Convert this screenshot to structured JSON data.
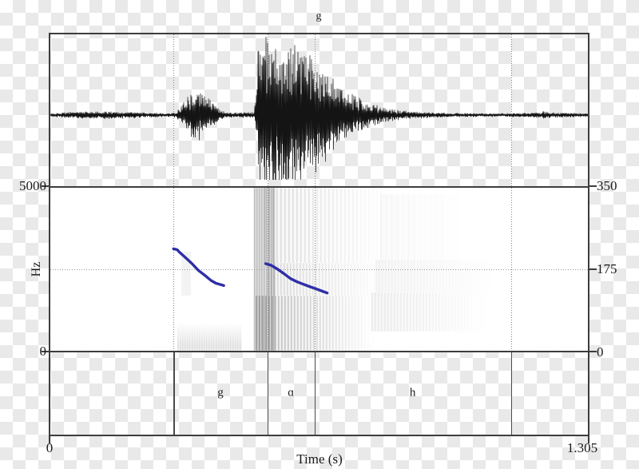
{
  "title": "g",
  "colors": {
    "frame": "#3d3d3d",
    "waveform_ink": "#141414",
    "pitch_line": "#2e2ea8",
    "dotted_guide": "#858585",
    "spectrogram_bg": "#ffffff",
    "spectrogram_ink": "#2d2d2d",
    "checker_gray": "#e9e9e9"
  },
  "axes": {
    "left": {
      "top_tick": "5000",
      "bottom_tick": "0",
      "unit": "Hz"
    },
    "right": {
      "top_tick": "350",
      "mid_tick": "175",
      "bottom_tick": "0"
    },
    "bottom": {
      "start_tick": "0",
      "end_tick": "1.305",
      "label": "Time (s)"
    }
  },
  "chart_data": [
    {
      "type": "line",
      "panel": "waveform",
      "title": "g",
      "x_range": [
        0,
        1.305
      ],
      "xlabel": "Time (s)",
      "description": "speech oscillogram; envelope = [time s, amplitude fraction of half-height]",
      "envelope": [
        [
          0,
          0.021
        ],
        [
          0.077,
          0.042
        ],
        [
          0.135,
          0.047
        ],
        [
          0.212,
          0.032
        ],
        [
          0.29,
          0.021
        ],
        [
          0.305,
          0.032
        ],
        [
          0.319,
          0.126
        ],
        [
          0.332,
          0.232
        ],
        [
          0.351,
          0.295
        ],
        [
          0.371,
          0.263
        ],
        [
          0.386,
          0.179
        ],
        [
          0.402,
          0.105
        ],
        [
          0.413,
          0.053
        ],
        [
          0.429,
          0.032
        ],
        [
          0.463,
          0.032
        ],
        [
          0.494,
          0.032
        ],
        [
          0.5,
          0.263
        ],
        [
          0.504,
          0.947
        ],
        [
          0.517,
          1.0
        ],
        [
          0.533,
          0.926
        ],
        [
          0.546,
          0.979
        ],
        [
          0.56,
          0.863
        ],
        [
          0.575,
          0.937
        ],
        [
          0.591,
          0.821
        ],
        [
          0.606,
          0.874
        ],
        [
          0.622,
          0.737
        ],
        [
          0.637,
          0.674
        ],
        [
          0.652,
          0.589
        ],
        [
          0.672,
          0.495
        ],
        [
          0.691,
          0.4
        ],
        [
          0.71,
          0.316
        ],
        [
          0.733,
          0.242
        ],
        [
          0.757,
          0.179
        ],
        [
          0.782,
          0.126
        ],
        [
          0.811,
          0.084
        ],
        [
          0.849,
          0.053
        ],
        [
          0.898,
          0.037
        ],
        [
          0.965,
          0.026
        ],
        [
          1.042,
          0.021
        ],
        [
          1.12,
          0.021
        ],
        [
          1.181,
          0.032
        ],
        [
          1.197,
          0.047
        ],
        [
          1.212,
          0.032
        ],
        [
          1.305,
          0.021
        ]
      ]
    },
    {
      "type": "heatmap",
      "panel": "spectrogram",
      "ylabel": "Hz",
      "ylim": [
        0,
        5000
      ],
      "yticks": [
        0,
        5000
      ],
      "description": "grayscale spectrogram energy regions; t in s, f in Hz, d = darkness 0-1",
      "texture_regions": [
        {
          "t": [
            0.309,
            0.465
          ],
          "f": [
            0,
            850
          ],
          "d": 0.2,
          "stripe": 3,
          "fade": "top"
        },
        {
          "t": [
            0.318,
            0.341
          ],
          "f": [
            1700,
            3050
          ],
          "d": 0.06,
          "stripe": 0,
          "fade": "none"
        },
        {
          "t": [
            0.494,
            0.546
          ],
          "f": [
            0,
            5000
          ],
          "d": 0.4,
          "stripe": 3,
          "fade": "none"
        },
        {
          "t": [
            0.498,
            0.79
          ],
          "f": [
            0,
            1700
          ],
          "d": 0.4,
          "stripe": 4,
          "fade": "right"
        },
        {
          "t": [
            0.527,
            0.81
          ],
          "f": [
            1700,
            2700
          ],
          "d": 0.22,
          "stripe": 4,
          "fade": "right"
        },
        {
          "t": [
            0.52,
            0.82
          ],
          "f": [
            2700,
            5000
          ],
          "d": 0.2,
          "stripe": 5,
          "fade": "right"
        },
        {
          "t": [
            0.79,
            1.08
          ],
          "f": [
            1800,
            2800
          ],
          "d": 0.09,
          "stripe": 4,
          "fade": "right"
        },
        {
          "t": [
            0.78,
            1.06
          ],
          "f": [
            600,
            1800
          ],
          "d": 0.12,
          "stripe": 4,
          "fade": "right"
        },
        {
          "t": [
            0.8,
            1.01
          ],
          "f": [
            2800,
            4800
          ],
          "d": 0.05,
          "stripe": 7,
          "fade": "right"
        }
      ]
    },
    {
      "type": "line",
      "panel": "pitch",
      "ylim": [
        0,
        350
      ],
      "yticks": [
        0,
        175,
        350
      ],
      "legend": "none",
      "description": "blue pitch contour over spectrogram; points = [time s, F0 Hz]",
      "series": [
        {
          "name": "pitch segment 1",
          "points": [
            [
              0.299,
              219
            ],
            [
              0.308,
              217
            ],
            [
              0.313,
              212
            ],
            [
              0.328,
              200
            ],
            [
              0.344,
              187
            ],
            [
              0.359,
              173
            ],
            [
              0.375,
              162
            ],
            [
              0.39,
              151
            ],
            [
              0.402,
              145
            ],
            [
              0.417,
              141
            ],
            [
              0.421,
              140
            ]
          ]
        },
        {
          "name": "pitch segment 2",
          "points": [
            [
              0.523,
              187
            ],
            [
              0.537,
              183
            ],
            [
              0.552,
              175
            ],
            [
              0.568,
              165
            ],
            [
              0.583,
              155
            ],
            [
              0.599,
              148
            ],
            [
              0.614,
              143
            ],
            [
              0.629,
              138
            ],
            [
              0.645,
              133
            ],
            [
              0.66,
              128
            ],
            [
              0.672,
              124
            ]
          ]
        }
      ]
    },
    {
      "type": "table",
      "panel": "textgrid",
      "description": "interval tier annotations",
      "tier": [
        {
          "xmin": 0,
          "xmax": 0.299,
          "text": ""
        },
        {
          "xmin": 0.299,
          "xmax": 0.527,
          "text": "g"
        },
        {
          "xmin": 0.527,
          "xmax": 0.641,
          "text": "ɑ"
        },
        {
          "xmin": 0.641,
          "xmax": 1.118,
          "text": "h"
        },
        {
          "xmin": 1.118,
          "xmax": 1.305,
          "text": ""
        }
      ]
    }
  ]
}
